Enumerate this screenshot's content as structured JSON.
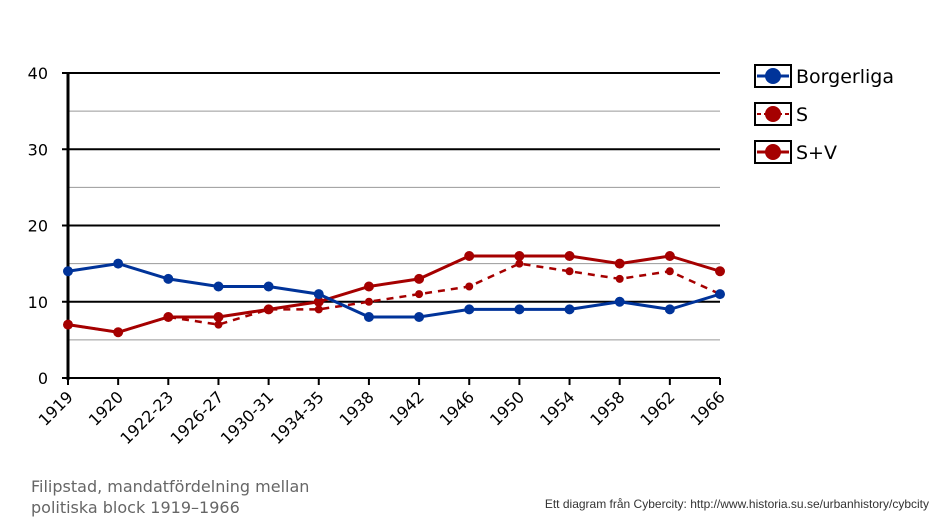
{
  "chart_data": {
    "type": "line",
    "categories": [
      "1919",
      "1920",
      "1922-23",
      "1926-27",
      "1930-31",
      "1934-35",
      "1938",
      "1942",
      "1946",
      "1950",
      "1954",
      "1958",
      "1962",
      "1966"
    ],
    "series": [
      {
        "name": "Borgerliga",
        "color": "#003399",
        "dash": false,
        "values": [
          14,
          15,
          13,
          12,
          12,
          11,
          8,
          8,
          9,
          9,
          9,
          10,
          9,
          11
        ]
      },
      {
        "name": "S",
        "color": "#a50000",
        "dash": true,
        "values": [
          7,
          6,
          8,
          7,
          9,
          9,
          10,
          11,
          12,
          15,
          14,
          13,
          14,
          11
        ]
      },
      {
        "name": "S+V",
        "color": "#a50000",
        "dash": false,
        "values": [
          7,
          6,
          8,
          8,
          9,
          10,
          12,
          13,
          16,
          16,
          16,
          15,
          16,
          14
        ]
      }
    ],
    "ylim": [
      0,
      40
    ],
    "yticks": [
      "0",
      "10",
      "20",
      "30",
      "40"
    ],
    "grid": true,
    "legend": "right"
  },
  "caption": "Filipstad, mandatfördelning  mellan politiska block 1919–1966",
  "credit": "Ett diagram från Cybercity: http://www.historia.su.se/urbanhistory/cybcity"
}
